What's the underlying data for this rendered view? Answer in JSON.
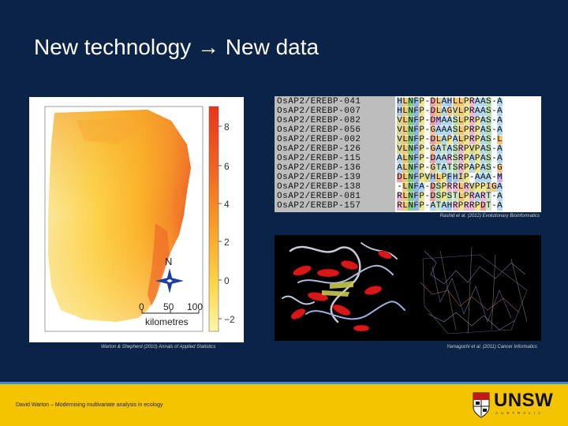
{
  "title": "New technology → New data",
  "map": {
    "north_label": "N",
    "scale_ticks": [
      "0",
      "50",
      "100"
    ],
    "scale_unit": "kilometres",
    "colorbar_ticks": [
      "8",
      "6",
      "4",
      "2",
      "0",
      "−2"
    ],
    "caption": "Warton & Shepherd (2010) Annals of Applied Statistics"
  },
  "alignment": {
    "names": [
      "OsAP2/EREBP-041",
      "OsAP2/EREBP-007",
      "OsAP2/EREBP-082",
      "OsAP2/EREBP-056",
      "OsAP2/EREBP-002",
      "OsAP2/EREBP-126",
      "OsAP2/EREBP-115",
      "OsAP2/EREBP-136",
      "OsAP2/EREBP-139",
      "OsAP2/EREBP-138",
      "OsAP2/EREBP-081",
      "OsAP2/EREBP-157"
    ],
    "sequences": [
      "HLNFP-DLAHLLPRAAS-A",
      "HLNFP-DLAGVLPRAAS-A",
      "VLNFP-DMAASLPRPAS-A",
      "VLNFP-GAAASLPRPAS-A",
      "VLNFP-DLAPALPRPAS-L",
      "VLNFP-GATASRPVPAS-A",
      "ALNFP-DAARSRPAPAS-A",
      "ALNFP-GTATSRPAPAS-G",
      "DLNFPVHLPFHIP-AAA-M",
      "-LNFA-DSPRRLRVPPIGA",
      "RLNFP-DSPSTLPRART-A",
      "RLNFP-ATAHRPRRPDT-A"
    ],
    "caption": "Rashid et al. (2012) Evolutionary Bioinformatics"
  },
  "protein": {
    "caption": "Yamaguchi et al. (2011) Cancer Informatics"
  },
  "footer": {
    "text": "David Warton – Modernising multivariate analysis in ecology",
    "logo_word": "UNSW",
    "logo_sub": "AUSTRALIA"
  },
  "colors": {
    "background": "#0a2346",
    "footer": "#f5c400",
    "footer_line": "#3a8fd8"
  }
}
